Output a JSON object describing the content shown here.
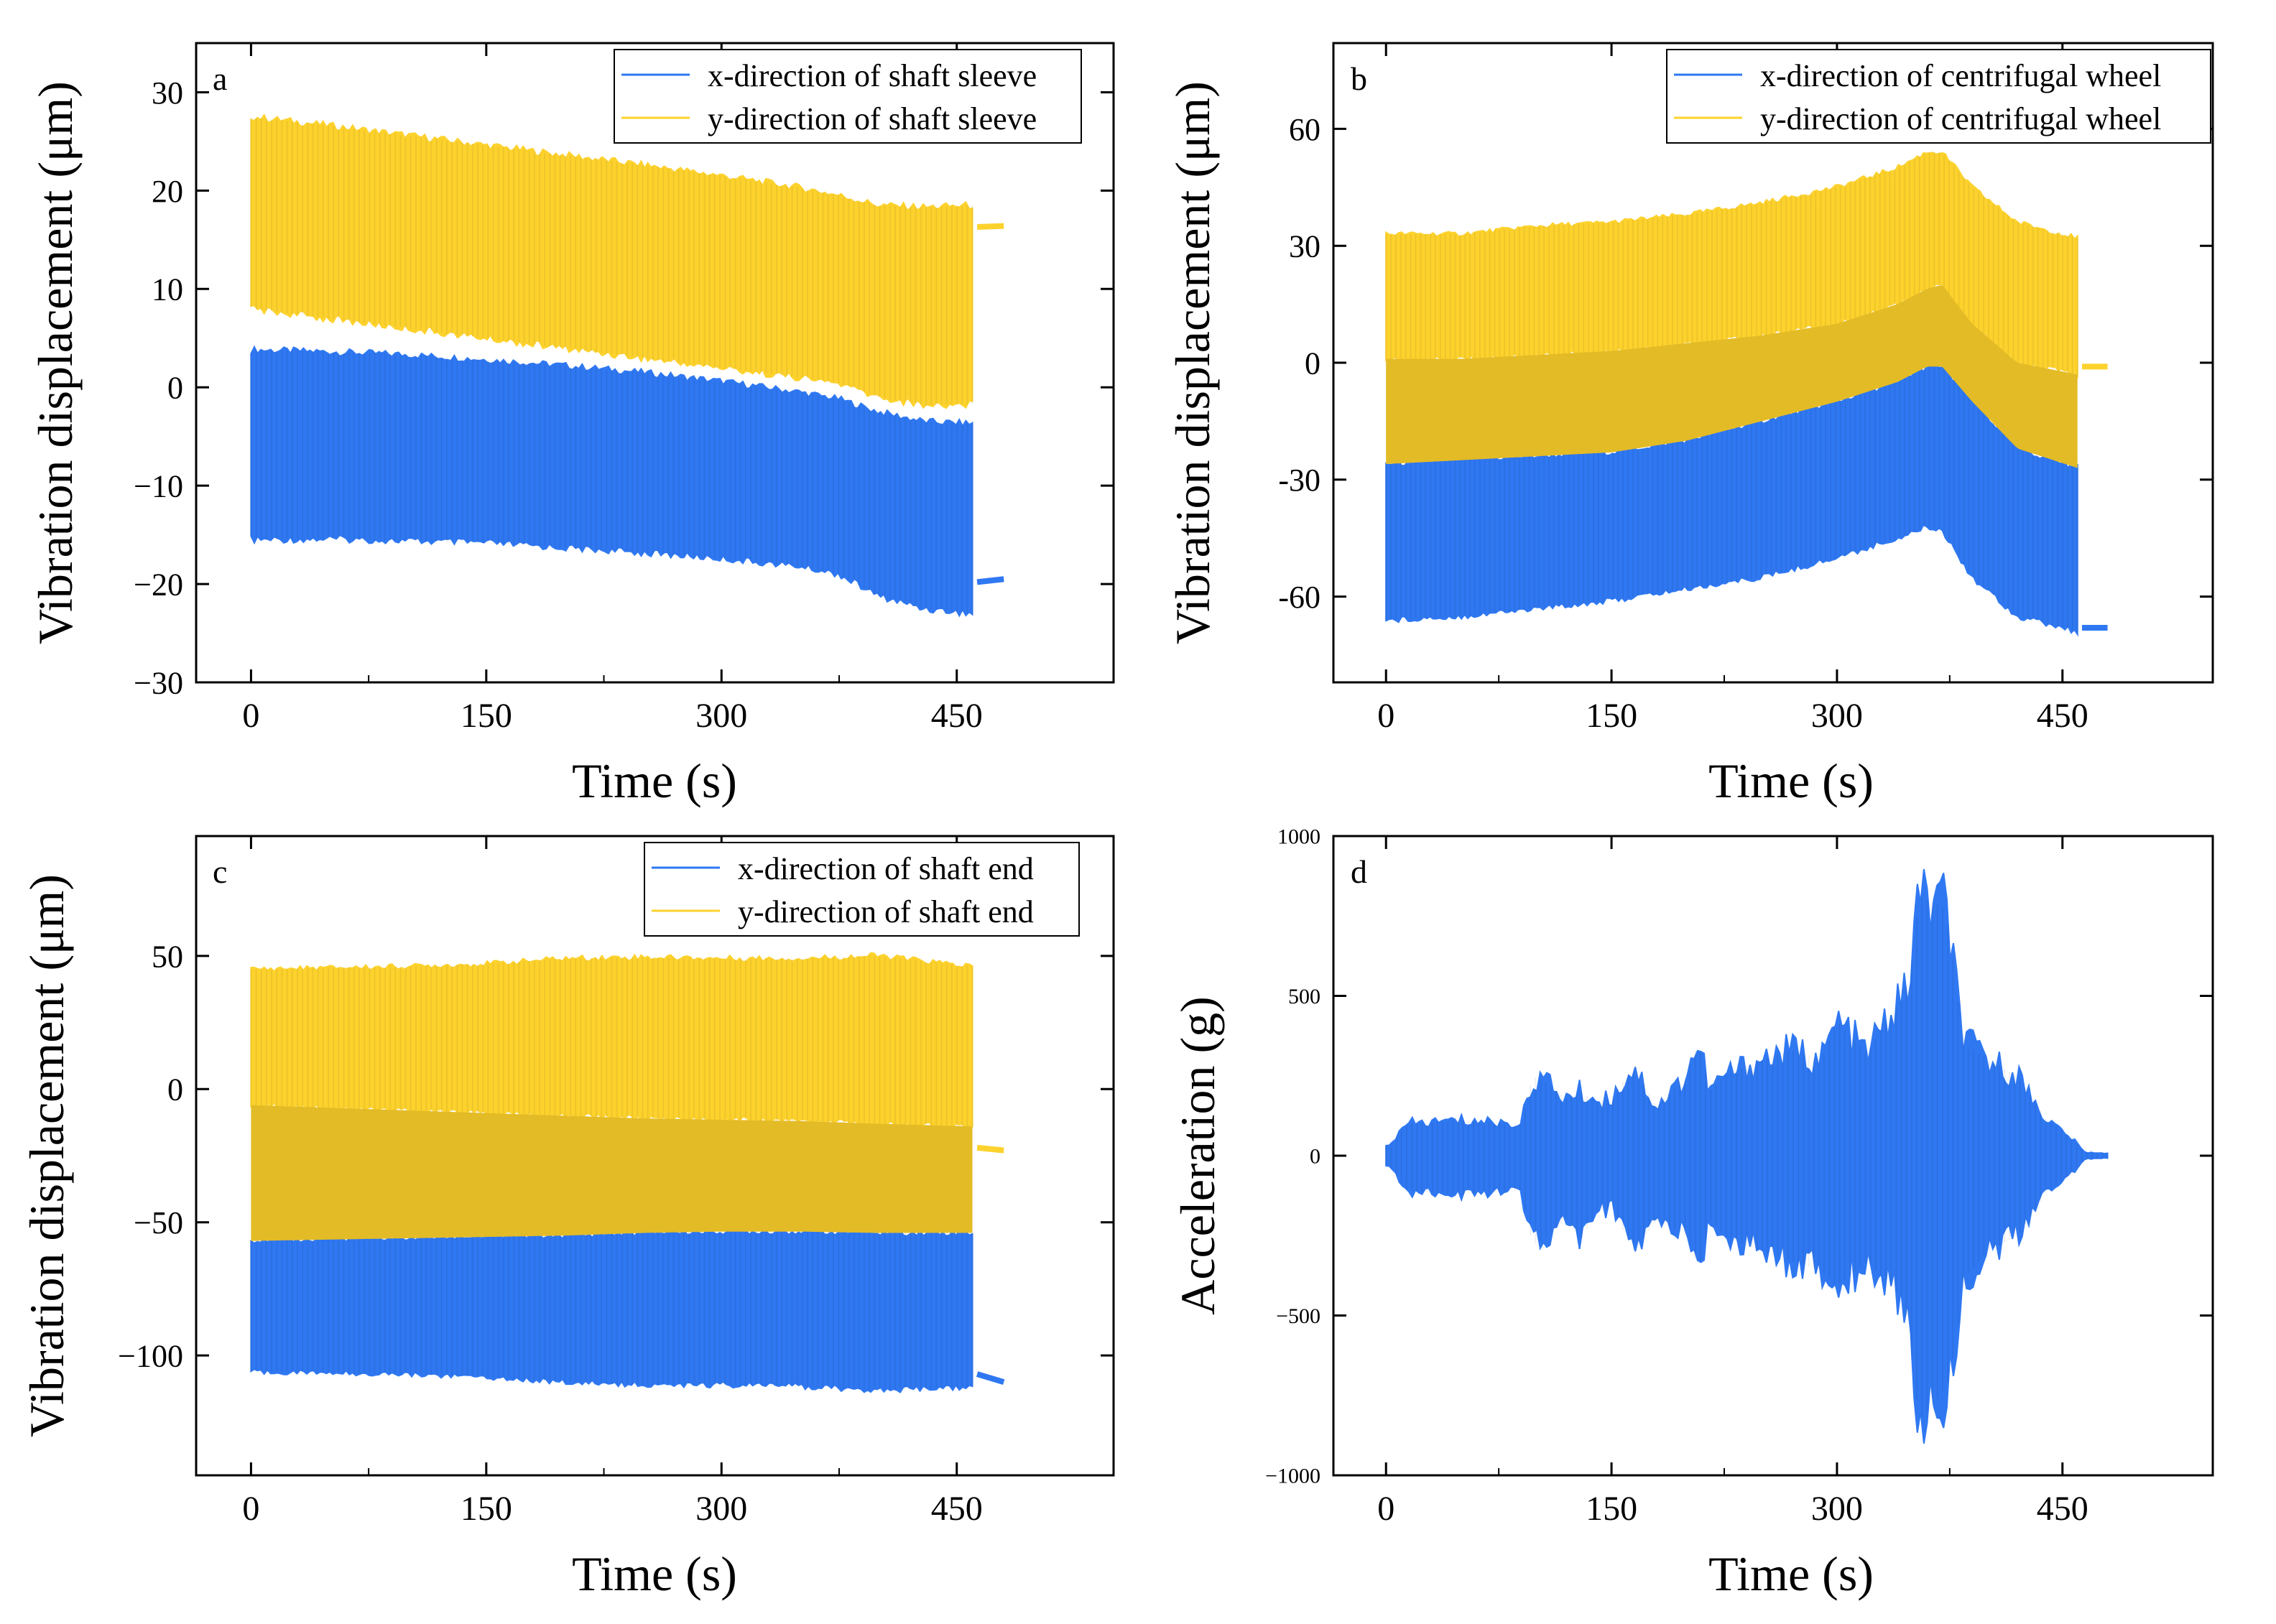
{
  "colors": {
    "x_series": "#2f78f2",
    "y_series": "#fdd22d",
    "overlap": "#e3bb26",
    "axis": "#000000"
  },
  "chart_data": [
    {
      "id": "a",
      "type": "line",
      "panel_label": "a",
      "xlabel": "Time (s)",
      "ylabel": "Vibration displacement (μm)",
      "xlim": [
        -35,
        550
      ],
      "ylim": [
        -30,
        35
      ],
      "xticks": [
        0,
        150,
        300,
        450
      ],
      "xtick_labels": [
        "0",
        "150",
        "300",
        "450"
      ],
      "yticks": [
        -30,
        -20,
        -10,
        0,
        10,
        20,
        30
      ],
      "ytick_labels": [
        "−30",
        "−20",
        "−10",
        "0",
        "10",
        "20",
        "30"
      ],
      "legend": [
        "x-direction of shaft sleeve",
        "y-direction of shaft sleeve"
      ],
      "legend_position": "top-right",
      "series": [
        {
          "name": "x-direction of shaft sleeve",
          "color": "#2f78f2",
          "t": [
            0,
            50,
            100,
            150,
            200,
            250,
            300,
            350,
            375,
            400,
            430,
            460
          ],
          "upper": [
            3.8,
            3.6,
            3.3,
            2.8,
            2.2,
            1.5,
            0.6,
            -0.5,
            -1.2,
            -2.5,
            -3.5,
            -3.7
          ],
          "lower": [
            -15.5,
            -15.4,
            -15.6,
            -15.8,
            -16.3,
            -16.8,
            -17.4,
            -18.2,
            -19.0,
            -21.2,
            -22.5,
            -23.0
          ],
          "tail": {
            "t": [
              463,
              480
            ],
            "value": [
              -19.8,
              -19.5
            ]
          }
        },
        {
          "name": "y-direction of shaft sleeve",
          "color": "#fdd22d",
          "t": [
            0,
            50,
            100,
            150,
            200,
            250,
            300,
            350,
            375,
            400,
            430,
            460
          ],
          "upper": [
            27.5,
            26.6,
            25.6,
            24.6,
            23.6,
            22.6,
            21.5,
            20.3,
            19.5,
            18.5,
            18.3,
            18.5
          ],
          "lower": [
            8.0,
            7.0,
            6.0,
            5.0,
            4.0,
            3.0,
            2.0,
            1.0,
            0.4,
            -1.0,
            -1.8,
            -1.7
          ],
          "tail": {
            "t": [
              463,
              480
            ],
            "value": [
              16.3,
              16.4
            ]
          }
        }
      ]
    },
    {
      "id": "b",
      "type": "line",
      "panel_label": "b",
      "xlabel": "Time (s)",
      "ylabel": "Vibration displacement (μm)",
      "xlim": [
        -35,
        550
      ],
      "ylim": [
        -82,
        82
      ],
      "xticks": [
        0,
        150,
        300,
        450
      ],
      "xtick_labels": [
        "0",
        "150",
        "300",
        "450"
      ],
      "yticks": [
        -60,
        -30,
        0,
        30,
        60
      ],
      "ytick_labels": [
        "-60",
        "-30",
        "0",
        "30",
        "60"
      ],
      "legend": [
        "x-direction of centrifugal wheel",
        "y-direction of centrifugal wheel"
      ],
      "legend_position": "top-right",
      "series": [
        {
          "name": "x-direction of centrifugal wheel",
          "color": "#2f78f2",
          "t": [
            0,
            50,
            100,
            150,
            200,
            250,
            300,
            340,
            360,
            370,
            390,
            420,
            460
          ],
          "upper": [
            -26,
            -25,
            -24,
            -23,
            -20,
            -15,
            -10,
            -5,
            -1,
            -1,
            -10,
            -22,
            -27
          ],
          "lower": [
            -66,
            -65,
            -63,
            -61,
            -58,
            -55,
            -50,
            -45,
            -42,
            -43,
            -55,
            -65,
            -69
          ],
          "tail": {
            "t": [
              463,
              480
            ],
            "value": [
              -68,
              -68
            ]
          }
        },
        {
          "name": "y-direction of centrifugal wheel",
          "color": "#fdd22d",
          "t": [
            0,
            50,
            100,
            150,
            200,
            250,
            300,
            340,
            360,
            370,
            390,
            420,
            460
          ],
          "upper": [
            33,
            33,
            35,
            36,
            38,
            41,
            45,
            50,
            54,
            54,
            45,
            36,
            32
          ],
          "lower": [
            1,
            1,
            2,
            3,
            5,
            7,
            10,
            15,
            19,
            20,
            10,
            0,
            -3
          ],
          "tail": {
            "t": [
              463,
              480
            ],
            "value": [
              -1,
              -1
            ]
          }
        }
      ]
    },
    {
      "id": "c",
      "type": "line",
      "panel_label": "c",
      "xlabel": "Time (s)",
      "ylabel": "Vibration displacement (μm)",
      "xlim": [
        -35,
        550
      ],
      "ylim": [
        -145,
        95
      ],
      "xticks": [
        0,
        150,
        300,
        450
      ],
      "xtick_labels": [
        "0",
        "150",
        "300",
        "450"
      ],
      "yticks": [
        -100,
        -50,
        0,
        50
      ],
      "ytick_labels": [
        "−100",
        "−50",
        "0",
        "50"
      ],
      "legend": [
        "x-direction of shaft end",
        "y-direction of shaft end"
      ],
      "legend_position": "top-right",
      "series": [
        {
          "name": "x-direction of shaft end",
          "color": "#2f78f2",
          "t": [
            0,
            50,
            100,
            150,
            200,
            250,
            300,
            350,
            400,
            460
          ],
          "upper": [
            -57,
            -56.5,
            -56,
            -55.5,
            -55,
            -54,
            -53.5,
            -53.5,
            -54,
            -54
          ],
          "lower": [
            -106,
            -106.5,
            -107,
            -108,
            -110,
            -111,
            -111,
            -111.5,
            -113,
            -112
          ],
          "tail": {
            "t": [
              463,
              480
            ],
            "value": [
              -107,
              -110
            ]
          }
        },
        {
          "name": "y-direction of shaft end",
          "color": "#fdd22d",
          "t": [
            0,
            50,
            100,
            150,
            200,
            250,
            300,
            350,
            400,
            460
          ],
          "upper": [
            45,
            45.5,
            46,
            47,
            49,
            49.5,
            49,
            49,
            50,
            46
          ],
          "lower": [
            -6,
            -7,
            -8,
            -9,
            -10,
            -11,
            -11.5,
            -12,
            -13,
            -14
          ],
          "tail": {
            "t": [
              463,
              480
            ],
            "value": [
              -22,
              -23
            ]
          }
        }
      ]
    },
    {
      "id": "d",
      "type": "line",
      "panel_label": "d",
      "xlabel": "Time (s)",
      "ylabel": "Acceleration (g)",
      "xlim": [
        -35,
        550
      ],
      "ylim": [
        -1000,
        1000
      ],
      "xticks": [
        0,
        150,
        300,
        450
      ],
      "xtick_labels": [
        "0",
        "150",
        "300",
        "450"
      ],
      "yticks": [
        -1000,
        -500,
        0,
        500,
        1000
      ],
      "ytick_labels": [
        "−1000",
        "−500",
        "0",
        "500",
        "1000"
      ],
      "series": [
        {
          "name": "acceleration",
          "color": "#2f78f2",
          "t": [
            0,
            3,
            15,
            50,
            90,
            96,
            100,
            120,
            130,
            140,
            150,
            165,
            180,
            200,
            205,
            210,
            215,
            225,
            250,
            270,
            290,
            300,
            320,
            330,
            345,
            350,
            355,
            360,
            370,
            375,
            380,
            385,
            400,
            420,
            440,
            455,
            465,
            480
          ],
          "upper": [
            30,
            40,
            100,
            110,
            100,
            220,
            250,
            180,
            200,
            170,
            180,
            280,
            150,
            250,
            330,
            320,
            200,
            250,
            300,
            330,
            300,
            420,
            320,
            400,
            500,
            620,
            820,
            800,
            780,
            700,
            500,
            350,
            300,
            250,
            110,
            60,
            10,
            8
          ],
          "lower": [
            -30,
            -40,
            -110,
            -120,
            -110,
            -250,
            -280,
            -200,
            -260,
            -180,
            -160,
            -300,
            -200,
            -250,
            -320,
            -330,
            -200,
            -250,
            -300,
            -330,
            -360,
            -410,
            -330,
            -380,
            -450,
            -650,
            -830,
            -800,
            -740,
            -700,
            -550,
            -380,
            -300,
            -250,
            -110,
            -60,
            -10,
            -8
          ]
        }
      ]
    }
  ]
}
